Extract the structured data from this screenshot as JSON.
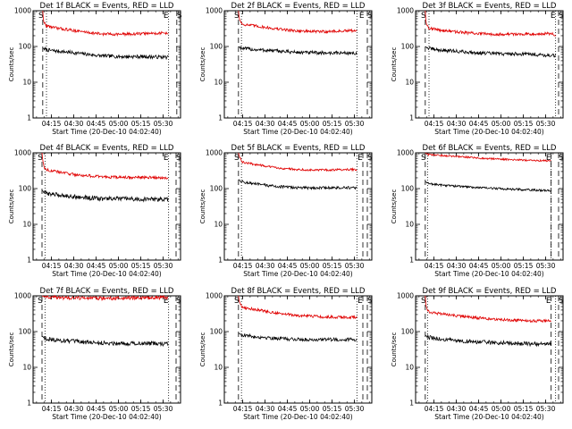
{
  "chart_data": [
    {
      "type": "line",
      "title": "Det 1f BLACK = Events, RED = LLD",
      "xlabel": "Start Time (20-Dec-10 04:02:40)",
      "ylabel": "Counts/sec",
      "yscale": "log",
      "ylim": [
        1,
        1000
      ],
      "xlim_min": [
        0,
        99
      ],
      "xticks": [
        "04:15",
        "04:30",
        "04:45",
        "05:00",
        "05:15",
        "05:30"
      ],
      "yticks": [
        "1",
        "10",
        "100",
        "1000"
      ],
      "markers": [
        "S",
        "E",
        "S"
      ],
      "series": [
        {
          "name": "Events",
          "color": "#000000",
          "profile": [
            [
              6.5,
              90
            ],
            [
              9,
              80
            ],
            [
              15,
              75
            ],
            [
              30,
              65
            ],
            [
              45,
              55
            ],
            [
              60,
              52
            ],
            [
              75,
              52
            ],
            [
              91,
              50
            ]
          ],
          "noise": 0.05
        },
        {
          "name": "LLD",
          "color": "#e00000",
          "profile": [
            [
              6.5,
              1000
            ],
            [
              7,
              500
            ],
            [
              9,
              380
            ],
            [
              15,
              330
            ],
            [
              30,
              270
            ],
            [
              45,
              225
            ],
            [
              60,
              220
            ],
            [
              75,
              230
            ],
            [
              91,
              240
            ]
          ],
          "noise": 0.04
        }
      ]
    },
    {
      "type": "line",
      "title": "Det 2f BLACK = Events, RED = LLD",
      "xlabel": "Start Time (20-Dec-10 04:02:40)",
      "ylabel": "Counts/sec",
      "yscale": "log",
      "ylim": [
        1,
        1000
      ],
      "xlim_min": [
        0,
        99
      ],
      "xticks": [
        "04:15",
        "04:30",
        "04:45",
        "05:00",
        "05:15",
        "05:30"
      ],
      "yticks": [
        "1",
        "10",
        "100",
        "1000"
      ],
      "markers": [
        "S",
        "E",
        "S"
      ],
      "series": [
        {
          "name": "Events",
          "color": "#000000",
          "profile": [
            [
              9.5,
              100
            ],
            [
              12,
              88
            ],
            [
              20,
              82
            ],
            [
              35,
              75
            ],
            [
              50,
              68
            ],
            [
              65,
              66
            ],
            [
              80,
              66
            ],
            [
              89,
              65
            ]
          ],
          "noise": 0.05
        },
        {
          "name": "LLD",
          "color": "#e00000",
          "profile": [
            [
              9.5,
              1000
            ],
            [
              10,
              600
            ],
            [
              12,
              420
            ],
            [
              20,
              380
            ],
            [
              35,
              310
            ],
            [
              50,
              270
            ],
            [
              65,
              260
            ],
            [
              80,
              270
            ],
            [
              89,
              280
            ]
          ],
          "noise": 0.04
        }
      ]
    },
    {
      "type": "line",
      "title": "Det 3f BLACK = Events, RED = LLD",
      "xlabel": "Start Time (20-Dec-10 04:02:40)",
      "ylabel": "Counts/sec",
      "yscale": "log",
      "ylim": [
        1,
        1000
      ],
      "xlim_min": [
        0,
        99
      ],
      "xticks": [
        "04:15",
        "04:30",
        "04:45",
        "05:00",
        "05:15",
        "05:30"
      ],
      "yticks": [
        "1",
        "10",
        "100",
        "1000"
      ],
      "markers": [
        "S",
        "E",
        "S"
      ],
      "series": [
        {
          "name": "Events",
          "color": "#000000",
          "profile": [
            [
              6.5,
              100
            ],
            [
              9,
              88
            ],
            [
              15,
              80
            ],
            [
              30,
              72
            ],
            [
              45,
              65
            ],
            [
              60,
              62
            ],
            [
              75,
              62
            ],
            [
              94,
              55
            ]
          ],
          "noise": 0.05
        },
        {
          "name": "LLD",
          "color": "#e00000",
          "profile": [
            [
              6.5,
              1000
            ],
            [
              7,
              450
            ],
            [
              9,
              330
            ],
            [
              15,
              290
            ],
            [
              30,
              250
            ],
            [
              45,
              225
            ],
            [
              60,
              220
            ],
            [
              75,
              225
            ],
            [
              92,
              230
            ],
            [
              94,
              180
            ]
          ],
          "noise": 0.04
        }
      ]
    },
    {
      "type": "line",
      "title": "Det 4f BLACK = Events, RED = LLD",
      "xlabel": "Start Time (20-Dec-10 04:02:40)",
      "ylabel": "Counts/sec",
      "yscale": "log",
      "ylim": [
        1,
        1000
      ],
      "xlim_min": [
        0,
        99
      ],
      "xticks": [
        "04:15",
        "04:30",
        "04:45",
        "05:00",
        "05:15",
        "05:30"
      ],
      "yticks": [
        "1",
        "10",
        "100",
        "1000"
      ],
      "markers": [
        "S",
        "E",
        "S"
      ],
      "series": [
        {
          "name": "Events",
          "color": "#000000",
          "profile": [
            [
              6,
              90
            ],
            [
              8,
              75
            ],
            [
              15,
              68
            ],
            [
              30,
              58
            ],
            [
              45,
              52
            ],
            [
              60,
              52
            ],
            [
              75,
              50
            ],
            [
              91,
              50
            ]
          ],
          "noise": 0.06
        },
        {
          "name": "LLD",
          "color": "#e00000",
          "profile": [
            [
              6,
              1000
            ],
            [
              6.5,
              600
            ],
            [
              8,
              350
            ],
            [
              15,
              300
            ],
            [
              30,
              240
            ],
            [
              45,
              215
            ],
            [
              60,
              205
            ],
            [
              75,
              205
            ],
            [
              91,
              200
            ]
          ],
          "noise": 0.04
        }
      ]
    },
    {
      "type": "line",
      "title": "Det 5f BLACK = Events, RED = LLD",
      "xlabel": "Start Time (20-Dec-10 04:02:40)",
      "ylabel": "Counts/sec",
      "yscale": "log",
      "ylim": [
        1,
        1000
      ],
      "xlim_min": [
        0,
        99
      ],
      "xticks": [
        "04:15",
        "04:30",
        "04:45",
        "05:00",
        "05:15",
        "05:30"
      ],
      "yticks": [
        "1",
        "10",
        "100",
        "1000"
      ],
      "markers": [
        "S",
        "E",
        "S"
      ],
      "series": [
        {
          "name": "Events",
          "color": "#000000",
          "profile": [
            [
              9.5,
              180
            ],
            [
              12,
              155
            ],
            [
              20,
              135
            ],
            [
              35,
              115
            ],
            [
              50,
              105
            ],
            [
              65,
              105
            ],
            [
              80,
              105
            ],
            [
              89,
              105
            ]
          ],
          "noise": 0.04
        },
        {
          "name": "LLD",
          "color": "#e00000",
          "profile": [
            [
              9.5,
              1000
            ],
            [
              10,
              800
            ],
            [
              12,
              550
            ],
            [
              20,
              480
            ],
            [
              35,
              380
            ],
            [
              50,
              340
            ],
            [
              65,
              330
            ],
            [
              80,
              340
            ],
            [
              89,
              340
            ]
          ],
          "noise": 0.03
        }
      ]
    },
    {
      "type": "line",
      "title": "Det 6f BLACK = Events, RED = LLD",
      "xlabel": "Start Time (20-Dec-10 04:02:40)",
      "ylabel": "Counts/sec",
      "yscale": "log",
      "ylim": [
        1,
        1000
      ],
      "xlim_min": [
        0,
        99
      ],
      "xticks": [
        "04:15",
        "04:30",
        "04:45",
        "05:00",
        "05:15",
        "05:30"
      ],
      "yticks": [
        "1",
        "10",
        "100",
        "1000"
      ],
      "markers": [
        "S",
        "E",
        "S"
      ],
      "series": [
        {
          "name": "Events",
          "color": "#000000",
          "profile": [
            [
              6.5,
              160
            ],
            [
              8,
              140
            ],
            [
              15,
              128
            ],
            [
              30,
              115
            ],
            [
              45,
              105
            ],
            [
              60,
              98
            ],
            [
              75,
              92
            ],
            [
              91,
              88
            ]
          ],
          "noise": 0.03
        },
        {
          "name": "LLD",
          "color": "#e00000",
          "profile": [
            [
              6.5,
              1000
            ],
            [
              8,
              900
            ],
            [
              15,
              850
            ],
            [
              30,
              780
            ],
            [
              45,
              700
            ],
            [
              60,
              660
            ],
            [
              75,
              620
            ],
            [
              91,
              600
            ]
          ],
          "noise": 0.025
        }
      ]
    },
    {
      "type": "line",
      "title": "Det 7f BLACK = Events, RED = LLD",
      "xlabel": "Start Time (20-Dec-10 04:02:40)",
      "ylabel": "Counts/sec",
      "yscale": "log",
      "ylim": [
        1,
        1000
      ],
      "xlim_min": [
        0,
        99
      ],
      "xticks": [
        "04:15",
        "04:30",
        "04:45",
        "05:00",
        "05:15",
        "05:30"
      ],
      "yticks": [
        "1",
        "10",
        "100",
        "1000"
      ],
      "markers": [
        "S",
        "E",
        "S"
      ],
      "series": [
        {
          "name": "Events",
          "color": "#000000",
          "profile": [
            [
              6,
              75
            ],
            [
              8,
              65
            ],
            [
              15,
              58
            ],
            [
              30,
              52
            ],
            [
              45,
              48
            ],
            [
              60,
              47
            ],
            [
              75,
              47
            ],
            [
              91,
              45
            ]
          ],
          "noise": 0.06
        },
        {
          "name": "LLD",
          "color": "#e00000",
          "profile": [
            [
              6,
              1000
            ],
            [
              8,
              950
            ],
            [
              15,
              900
            ],
            [
              30,
              870
            ],
            [
              45,
              850
            ],
            [
              60,
              860
            ],
            [
              75,
              880
            ],
            [
              91,
              900
            ]
          ],
          "noise": 0.05
        }
      ]
    },
    {
      "type": "line",
      "title": "Det 8f BLACK = Events, RED = LLD",
      "xlabel": "Start Time (20-Dec-10 04:02:40)",
      "ylabel": "Counts/sec",
      "yscale": "log",
      "ylim": [
        1,
        1000
      ],
      "xlim_min": [
        0,
        99
      ],
      "xticks": [
        "04:15",
        "04:30",
        "04:45",
        "05:00",
        "05:15",
        "05:30"
      ],
      "yticks": [
        "1",
        "10",
        "100",
        "1000"
      ],
      "markers": [
        "S",
        "E",
        "S"
      ],
      "series": [
        {
          "name": "Events",
          "color": "#000000",
          "profile": [
            [
              9.5,
              90
            ],
            [
              12,
              80
            ],
            [
              20,
              72
            ],
            [
              35,
              65
            ],
            [
              50,
              60
            ],
            [
              65,
              60
            ],
            [
              80,
              60
            ],
            [
              89,
              60
            ]
          ],
          "noise": 0.05
        },
        {
          "name": "LLD",
          "color": "#e00000",
          "profile": [
            [
              9.5,
              1000
            ],
            [
              10,
              700
            ],
            [
              12,
              480
            ],
            [
              20,
              420
            ],
            [
              35,
              330
            ],
            [
              50,
              280
            ],
            [
              65,
              260
            ],
            [
              80,
              250
            ],
            [
              89,
              250
            ]
          ],
          "noise": 0.04
        }
      ]
    },
    {
      "type": "line",
      "title": "Det 9f BLACK = Events, RED = LLD",
      "xlabel": "Start Time (20-Dec-10 04:02:40)",
      "ylabel": "Counts/sec",
      "yscale": "log",
      "ylim": [
        1,
        1000
      ],
      "xlim_min": [
        0,
        99
      ],
      "xticks": [
        "04:15",
        "04:30",
        "04:45",
        "05:00",
        "05:15",
        "05:30"
      ],
      "yticks": [
        "1",
        "10",
        "100",
        "1000"
      ],
      "markers": [
        "S",
        "E",
        "S"
      ],
      "series": [
        {
          "name": "Events",
          "color": "#000000",
          "profile": [
            [
              6.5,
              80
            ],
            [
              8,
              70
            ],
            [
              15,
              62
            ],
            [
              30,
              55
            ],
            [
              45,
              50
            ],
            [
              60,
              48
            ],
            [
              75,
              46
            ],
            [
              91,
              44
            ]
          ],
          "noise": 0.06
        },
        {
          "name": "LLD",
          "color": "#e00000",
          "profile": [
            [
              6.5,
              1000
            ],
            [
              7,
              500
            ],
            [
              9,
              350
            ],
            [
              15,
              320
            ],
            [
              30,
              270
            ],
            [
              45,
              235
            ],
            [
              60,
              215
            ],
            [
              75,
              200
            ],
            [
              91,
              200
            ]
          ],
          "noise": 0.04
        }
      ]
    }
  ]
}
